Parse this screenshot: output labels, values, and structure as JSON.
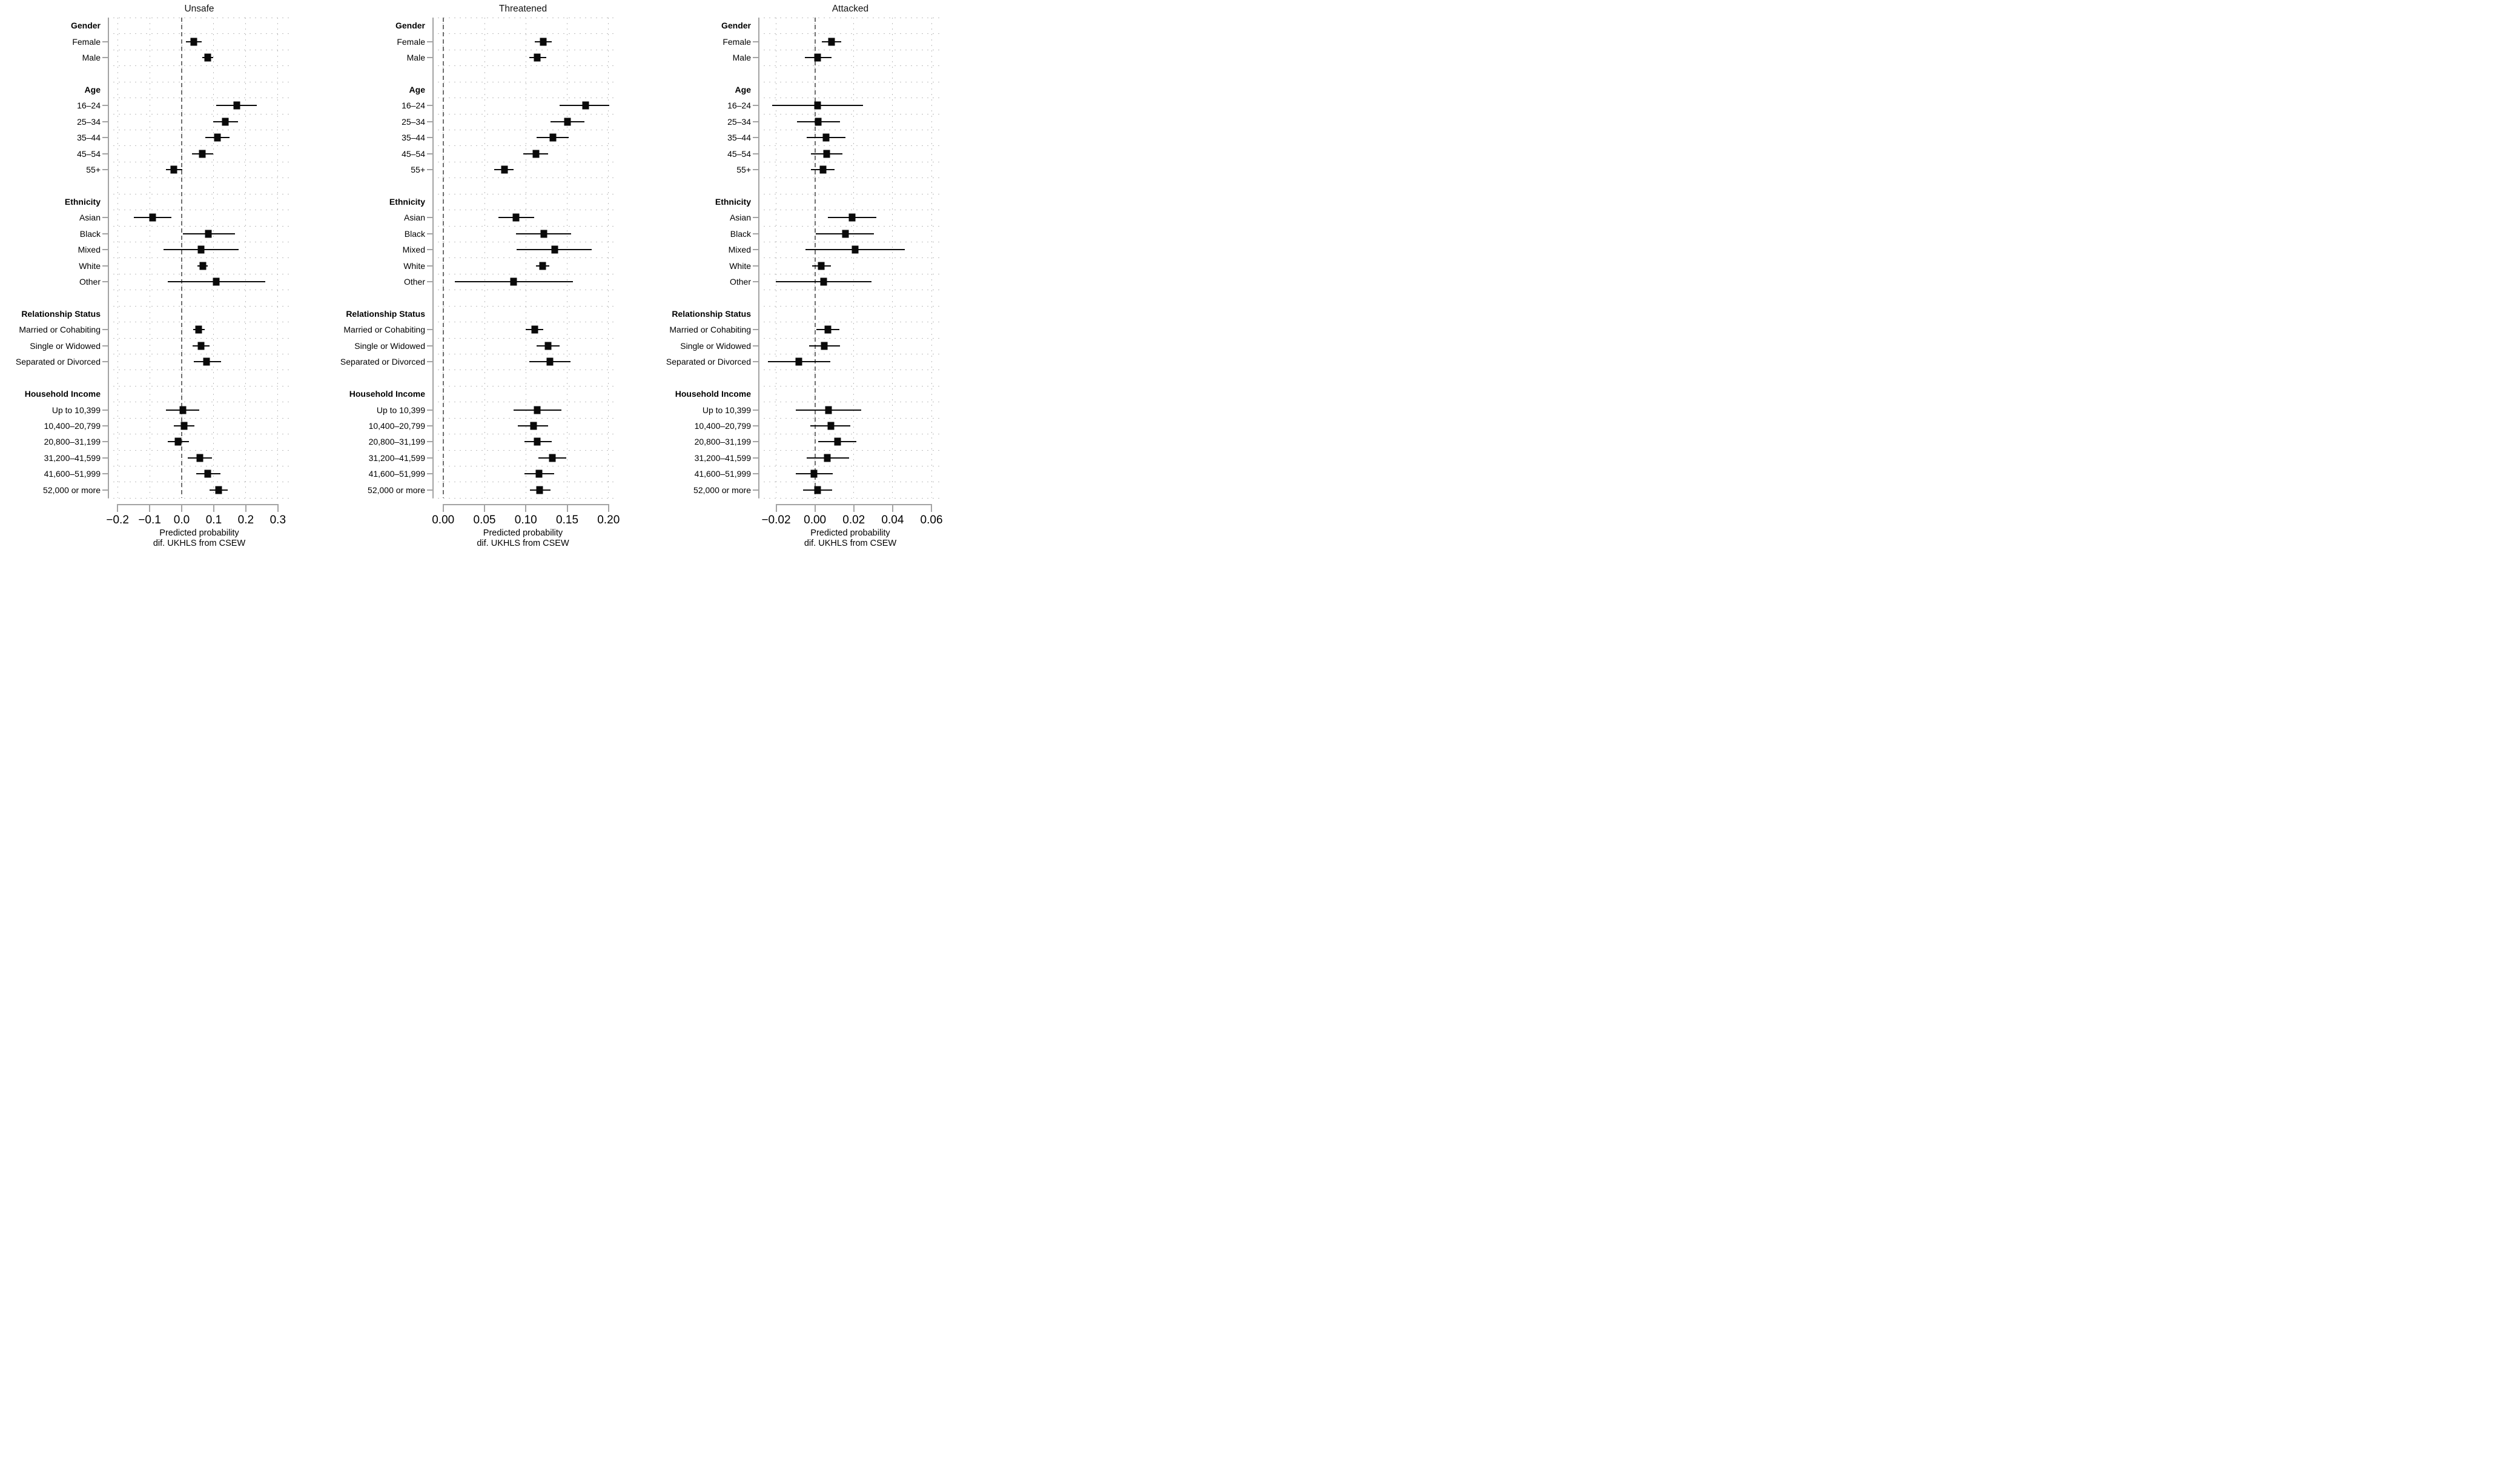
{
  "figure": {
    "background_color": "#ffffff",
    "text_color": "#000000",
    "axis_color": "#a3a3a3",
    "gridline_color": "#bdbdbd",
    "zero_line_color": "#6e6e6e",
    "marker_color": "#0a0a0a"
  },
  "chart_data": {
    "type": "forest",
    "xlabel_line1": "Predicted probability",
    "xlabel_line2": "dif. UKHLS from CSEW",
    "legend": "none",
    "grid": "dotted",
    "groups": [
      {
        "header": "Gender",
        "items": [
          "Female",
          "Male"
        ]
      },
      {
        "header": "Age",
        "items": [
          "16–24",
          "25–34",
          "35–44",
          "45–54",
          "55+"
        ]
      },
      {
        "header": "Ethnicity",
        "items": [
          "Asian",
          "Black",
          "Mixed",
          "White",
          "Other"
        ]
      },
      {
        "header": "Relationship Status",
        "items": [
          "Married or Cohabiting",
          "Single or Widowed",
          "Separated or Divorced"
        ]
      },
      {
        "header": "Household Income",
        "items": [
          "Up to 10,399",
          "10,400–20,799",
          "20,800–31,199",
          "31,200–41,599",
          "41,600–51,999",
          "52,000 or more"
        ]
      }
    ],
    "panels": [
      {
        "title": "Unsafe",
        "xlim": [
          -0.2305,
          0.34
        ],
        "zero": 0,
        "ticks": [
          {
            "v": -0.2,
            "label": "−0.2"
          },
          {
            "v": -0.1,
            "label": "−0.1"
          },
          {
            "v": 0.0,
            "label": "0.0"
          },
          {
            "v": 0.1,
            "label": "0.1"
          },
          {
            "v": 0.2,
            "label": "0.2"
          },
          {
            "v": 0.3,
            "label": "0.3"
          }
        ],
        "values": [
          [
            [
              0.038,
              0.014,
              0.062
            ],
            [
              0.081,
              0.065,
              0.098
            ]
          ],
          [
            [
              0.171,
              0.107,
              0.235
            ],
            [
              0.136,
              0.098,
              0.175
            ],
            [
              0.111,
              0.073,
              0.15
            ],
            [
              0.064,
              0.033,
              0.098
            ],
            [
              -0.025,
              -0.05,
              0.001
            ]
          ],
          [
            [
              -0.091,
              -0.149,
              -0.033
            ],
            [
              0.084,
              0.003,
              0.166
            ],
            [
              0.061,
              -0.056,
              0.177
            ],
            [
              0.066,
              0.05,
              0.081
            ],
            [
              0.107,
              -0.044,
              0.26
            ]
          ],
          [
            [
              0.053,
              0.035,
              0.072
            ],
            [
              0.061,
              0.034,
              0.087
            ],
            [
              0.078,
              0.037,
              0.122
            ]
          ],
          [
            [
              0.003,
              -0.05,
              0.054
            ],
            [
              0.008,
              -0.025,
              0.04
            ],
            [
              -0.011,
              -0.044,
              0.022
            ],
            [
              0.056,
              0.019,
              0.094
            ],
            [
              0.082,
              0.046,
              0.12
            ],
            [
              0.115,
              0.087,
              0.143
            ]
          ]
        ]
      },
      {
        "title": "Threatened",
        "xlim": [
          -0.013,
          0.206
        ],
        "zero": 0,
        "ticks": [
          {
            "v": 0.0,
            "label": "0.00"
          },
          {
            "v": 0.05,
            "label": "0.05"
          },
          {
            "v": 0.1,
            "label": "0.10"
          },
          {
            "v": 0.15,
            "label": "0.15"
          },
          {
            "v": 0.2,
            "label": "0.20"
          }
        ],
        "values": [
          [
            [
              0.121,
              0.111,
              0.131
            ],
            [
              0.114,
              0.104,
              0.125
            ]
          ],
          [
            [
              0.172,
              0.141,
              0.201
            ],
            [
              0.15,
              0.13,
              0.171
            ],
            [
              0.133,
              0.113,
              0.152
            ],
            [
              0.112,
              0.097,
              0.127
            ],
            [
              0.074,
              0.062,
              0.085
            ]
          ],
          [
            [
              0.088,
              0.067,
              0.11
            ],
            [
              0.122,
              0.088,
              0.155
            ],
            [
              0.135,
              0.089,
              0.18
            ],
            [
              0.12,
              0.112,
              0.128
            ],
            [
              0.085,
              0.014,
              0.157
            ]
          ],
          [
            [
              0.111,
              0.1,
              0.121
            ],
            [
              0.127,
              0.113,
              0.141
            ],
            [
              0.129,
              0.104,
              0.154
            ]
          ],
          [
            [
              0.114,
              0.085,
              0.143
            ],
            [
              0.109,
              0.09,
              0.127
            ],
            [
              0.114,
              0.098,
              0.131
            ],
            [
              0.132,
              0.115,
              0.149
            ],
            [
              0.116,
              0.098,
              0.134
            ],
            [
              0.117,
              0.105,
              0.13
            ]
          ]
        ]
      },
      {
        "title": "Attacked",
        "xlim": [
          -0.0292,
          0.0656
        ],
        "zero": 0,
        "ticks": [
          {
            "v": -0.02,
            "label": "−0.02"
          },
          {
            "v": 0.0,
            "label": "0.00"
          },
          {
            "v": 0.02,
            "label": "0.02"
          },
          {
            "v": 0.04,
            "label": "0.04"
          },
          {
            "v": 0.06,
            "label": "0.06"
          }
        ],
        "values": [
          [
            [
              0.0084,
              0.0034,
              0.0135
            ],
            [
              0.0014,
              -0.0052,
              0.0084
            ]
          ],
          [
            [
              0.0013,
              -0.0219,
              0.0246
            ],
            [
              0.0016,
              -0.0093,
              0.0129
            ],
            [
              0.0057,
              -0.0043,
              0.0158
            ],
            [
              0.0061,
              -0.002,
              0.0142
            ],
            [
              0.0042,
              -0.002,
              0.0101
            ]
          ],
          [
            [
              0.0191,
              0.0067,
              0.0315
            ],
            [
              0.0157,
              0.0003,
              0.0305
            ],
            [
              0.0207,
              -0.0048,
              0.0462
            ],
            [
              0.0033,
              -0.0016,
              0.0083
            ],
            [
              0.0045,
              -0.0203,
              0.0292
            ]
          ],
          [
            [
              0.0068,
              0.0008,
              0.0127
            ],
            [
              0.0049,
              -0.0031,
              0.0129
            ],
            [
              -0.0082,
              -0.0242,
              0.008
            ]
          ],
          [
            [
              0.0069,
              -0.0098,
              0.0237
            ],
            [
              0.0081,
              -0.0024,
              0.0183
            ],
            [
              0.0118,
              0.0018,
              0.0214
            ],
            [
              0.0065,
              -0.0043,
              0.0175
            ],
            [
              -0.0005,
              -0.0098,
              0.0092
            ],
            [
              0.0013,
              -0.0061,
              0.0088
            ]
          ]
        ]
      }
    ]
  }
}
